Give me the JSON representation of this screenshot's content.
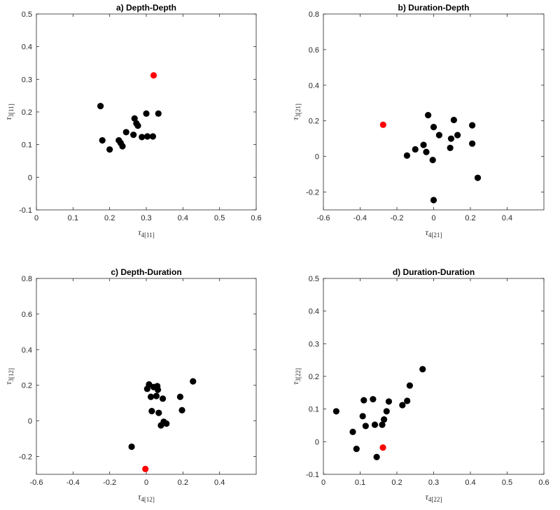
{
  "chart_data": [
    {
      "type": "scatter",
      "title": "a) Depth-Depth",
      "xlabel": {
        "main": "τ",
        "sub": "4[11]"
      },
      "ylabel": {
        "main": "τ",
        "sub": "3[11]"
      },
      "xlim": [
        0,
        0.6
      ],
      "ylim": [
        -0.1,
        0.5
      ],
      "xticks": [
        0,
        0.1,
        0.2,
        0.3,
        0.4,
        0.5,
        0.6
      ],
      "yticks": [
        -0.1,
        0,
        0.1,
        0.2,
        0.3,
        0.4,
        0.5
      ],
      "xticklabels": [
        "0",
        "0.1",
        "0.2",
        "0.3",
        "0.4",
        "0.5",
        "0.6"
      ],
      "yticklabels": [
        "-0.1",
        "0",
        "0.1",
        "0.2",
        "0.3",
        "0.4",
        "0.5"
      ],
      "series": [
        {
          "color": "#000000",
          "points": [
            [
              0.175,
              0.218
            ],
            [
              0.18,
              0.113
            ],
            [
              0.2,
              0.085
            ],
            [
              0.225,
              0.113
            ],
            [
              0.23,
              0.105
            ],
            [
              0.235,
              0.095
            ],
            [
              0.245,
              0.138
            ],
            [
              0.265,
              0.13
            ],
            [
              0.268,
              0.18
            ],
            [
              0.273,
              0.165
            ],
            [
              0.277,
              0.158
            ],
            [
              0.288,
              0.123
            ],
            [
              0.3,
              0.195
            ],
            [
              0.303,
              0.125
            ],
            [
              0.318,
              0.125
            ],
            [
              0.333,
              0.195
            ]
          ]
        },
        {
          "color": "#ff0000",
          "points": [
            [
              0.32,
              0.312
            ]
          ]
        }
      ]
    },
    {
      "type": "scatter",
      "title": "b) Duration-Depth",
      "xlabel": {
        "main": "τ",
        "sub": "4[21]"
      },
      "ylabel": {
        "main": "τ",
        "sub": "3[21]"
      },
      "xlim": [
        -0.6,
        0.6
      ],
      "ylim": [
        -0.3,
        0.8
      ],
      "xticks": [
        -0.6,
        -0.4,
        -0.2,
        0,
        0.2,
        0.4
      ],
      "yticks": [
        -0.2,
        0,
        0.2,
        0.4,
        0.6,
        0.8
      ],
      "xticklabels": [
        "-0.6",
        "-0.4",
        "-0.2",
        "0",
        "0.2",
        "0.4"
      ],
      "yticklabels": [
        "-0.2",
        "0",
        "0.2",
        "0.4",
        "0.6",
        "0.8"
      ],
      "series": [
        {
          "color": "#000000",
          "points": [
            [
              -0.145,
              0.005
            ],
            [
              -0.1,
              0.04
            ],
            [
              -0.055,
              0.065
            ],
            [
              -0.04,
              0.025
            ],
            [
              -0.03,
              0.232
            ],
            [
              -0.005,
              -0.02
            ],
            [
              0.0,
              -0.245
            ],
            [
              0.0,
              0.165
            ],
            [
              0.03,
              0.12
            ],
            [
              0.09,
              0.048
            ],
            [
              0.095,
              0.1
            ],
            [
              0.11,
              0.205
            ],
            [
              0.13,
              0.12
            ],
            [
              0.21,
              0.072
            ],
            [
              0.21,
              0.175
            ],
            [
              0.24,
              -0.12
            ]
          ]
        },
        {
          "color": "#ff0000",
          "points": [
            [
              -0.275,
              0.178
            ]
          ]
        }
      ]
    },
    {
      "type": "scatter",
      "title": "c) Depth-Duration",
      "xlabel": {
        "main": "τ",
        "sub": "4[12]"
      },
      "ylabel": {
        "main": "τ",
        "sub": "3[12]"
      },
      "xlim": [
        -0.6,
        0.6
      ],
      "ylim": [
        -0.3,
        0.8
      ],
      "xticks": [
        -0.6,
        -0.4,
        -0.2,
        0,
        0.2,
        0.4
      ],
      "yticks": [
        -0.2,
        0,
        0.2,
        0.4,
        0.6,
        0.8
      ],
      "xticklabels": [
        "-0.6",
        "-0.4",
        "-0.2",
        "0",
        "0.2",
        "0.4"
      ],
      "yticklabels": [
        "-0.2",
        "0",
        "0.2",
        "0.4",
        "0.6",
        "0.8"
      ],
      "series": [
        {
          "color": "#000000",
          "points": [
            [
              -0.08,
              -0.145
            ],
            [
              0.005,
              0.18
            ],
            [
              0.015,
              0.205
            ],
            [
              0.025,
              0.135
            ],
            [
              0.03,
              0.055
            ],
            [
              0.04,
              0.19
            ],
            [
              0.055,
              0.14
            ],
            [
              0.06,
              0.195
            ],
            [
              0.063,
              0.175
            ],
            [
              0.068,
              0.045
            ],
            [
              0.08,
              -0.025
            ],
            [
              0.09,
              0.125
            ],
            [
              0.095,
              -0.005
            ],
            [
              0.11,
              -0.015
            ],
            [
              0.185,
              0.135
            ],
            [
              0.195,
              0.06
            ],
            [
              0.255,
              0.222
            ]
          ]
        },
        {
          "color": "#ff0000",
          "points": [
            [
              -0.005,
              -0.27
            ]
          ]
        }
      ]
    },
    {
      "type": "scatter",
      "title": "d) Duration-Duration",
      "xlabel": {
        "main": "τ",
        "sub": "4[22]"
      },
      "ylabel": {
        "main": "τ",
        "sub": "3[22]"
      },
      "xlim": [
        0,
        0.6
      ],
      "ylim": [
        -0.1,
        0.5
      ],
      "xticks": [
        0,
        0.1,
        0.2,
        0.3,
        0.4,
        0.5,
        0.6
      ],
      "yticks": [
        -0.1,
        0,
        0.1,
        0.2,
        0.3,
        0.4,
        0.5
      ],
      "xticklabels": [
        "0",
        "0.1",
        "0.2",
        "0.3",
        "0.4",
        "0.5",
        "0.6"
      ],
      "yticklabels": [
        "-0.1",
        "0",
        "0.1",
        "0.2",
        "0.3",
        "0.4",
        "0.5"
      ],
      "series": [
        {
          "color": "#000000",
          "points": [
            [
              0.035,
              0.093
            ],
            [
              0.08,
              0.03
            ],
            [
              0.09,
              -0.022
            ],
            [
              0.107,
              0.078
            ],
            [
              0.11,
              0.127
            ],
            [
              0.115,
              0.048
            ],
            [
              0.135,
              0.13
            ],
            [
              0.14,
              0.052
            ],
            [
              0.145,
              -0.047
            ],
            [
              0.16,
              0.052
            ],
            [
              0.165,
              0.068
            ],
            [
              0.172,
              0.093
            ],
            [
              0.178,
              0.123
            ],
            [
              0.215,
              0.112
            ],
            [
              0.228,
              0.125
            ],
            [
              0.235,
              0.172
            ],
            [
              0.27,
              0.222
            ]
          ]
        },
        {
          "color": "#ff0000",
          "points": [
            [
              0.162,
              -0.018
            ]
          ]
        }
      ]
    }
  ]
}
